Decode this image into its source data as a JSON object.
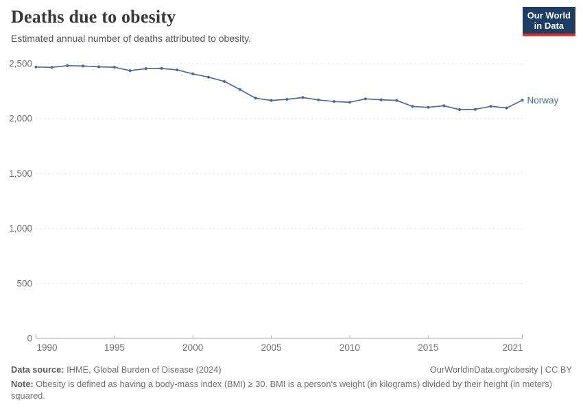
{
  "header": {
    "title": "Deaths due to obesity",
    "subtitle": "Estimated annual number of deaths attributed to obesity."
  },
  "logo": {
    "line1": "Our World",
    "line2": "in Data",
    "bg_color": "#1d3d63",
    "accent_color": "#e0312a"
  },
  "chart_data": {
    "type": "line",
    "title": "Deaths due to obesity",
    "subtitle": "Estimated annual number of deaths attributed to obesity.",
    "xlabel": "",
    "ylabel": "",
    "ylim": [
      0,
      2500
    ],
    "yticks": [
      0,
      500,
      1000,
      1500,
      2000,
      2500
    ],
    "ytick_labels": [
      "0",
      "500",
      "1,000",
      "1,500",
      "2,000",
      "2,500"
    ],
    "xticks": [
      1990,
      1995,
      2000,
      2005,
      2010,
      2015,
      2021
    ],
    "grid": "horizontal dashed gridlines, light gray",
    "legend": "series label at right end of line",
    "series": [
      {
        "name": "Norway",
        "color": "#4C6A9C",
        "years": [
          1990,
          1991,
          1992,
          1993,
          1994,
          1995,
          1996,
          1997,
          1998,
          1999,
          2000,
          2001,
          2002,
          2003,
          2004,
          2005,
          2006,
          2007,
          2008,
          2009,
          2010,
          2011,
          2012,
          2013,
          2014,
          2015,
          2016,
          2017,
          2018,
          2019,
          2020,
          2021
        ],
        "values": [
          2470,
          2467,
          2482,
          2479,
          2472,
          2468,
          2437,
          2455,
          2457,
          2443,
          2408,
          2377,
          2339,
          2265,
          2186,
          2166,
          2176,
          2192,
          2171,
          2156,
          2149,
          2180,
          2172,
          2166,
          2111,
          2103,
          2117,
          2082,
          2085,
          2112,
          2097,
          2167
        ]
      }
    ]
  },
  "footer": {
    "source_label": "Data source:",
    "source_text": " IHME, Global Burden of Disease (2024)",
    "rights": "OurWorldinData.org/obesity | CC BY",
    "note_label": "Note:",
    "note_text": " Obesity is defined as having a body-mass index (BMI) ≥ 30. BMI is a person's weight (in kilograms) divided by their height (in meters) squared."
  },
  "colors": {
    "series_blue": "#4C6A9C",
    "gridline": "#dcdcdc",
    "axis_line": "#a8a8a8",
    "tick": "#b8b8b8",
    "tick_label": "#6e6e6e",
    "title_text": "#383636",
    "subtitle_text": "#555555",
    "footer_text": "#6e6e6e"
  }
}
